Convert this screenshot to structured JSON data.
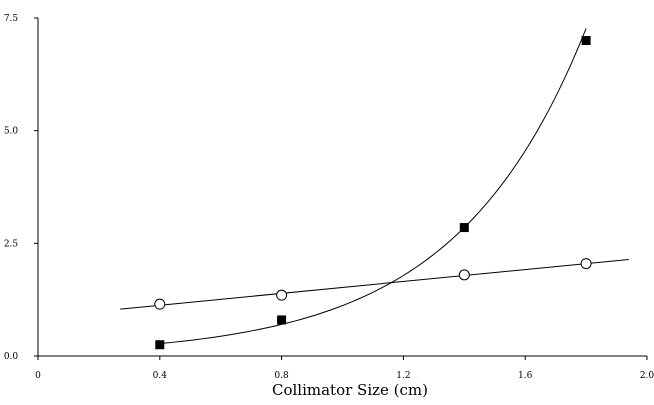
{
  "chart_data": {
    "type": "scatter",
    "xlabel": "Collimator Size (cm)",
    "ylabel": "",
    "title": "",
    "xlim": [
      0,
      2.0
    ],
    "ylim": [
      0,
      7.5
    ],
    "x_ticks": [
      0,
      0.4,
      0.8,
      1.2,
      1.6,
      2.0
    ],
    "x_tick_labels": [
      "0",
      "0.4",
      "0.8",
      "1.2",
      "1.6",
      "2.0"
    ],
    "y_ticks": [
      0,
      2.5,
      5.0,
      7.5
    ],
    "y_tick_labels": [
      "0.0",
      "2.5",
      "5.0",
      "7.5"
    ],
    "grid": false,
    "legend": "none",
    "series": [
      {
        "marker": "filled-square",
        "color": "#000000",
        "x": [
          0.4,
          0.8,
          1.4,
          1.8
        ],
        "y": [
          0.25,
          0.8,
          2.85,
          7.0
        ],
        "fit": "exponential",
        "fit_x_range": [
          0.4,
          1.8
        ]
      },
      {
        "marker": "open-circle",
        "color": "#000000",
        "x": [
          0.4,
          0.8,
          1.4,
          1.8
        ],
        "y": [
          1.15,
          1.35,
          1.8,
          2.05
        ],
        "fit": "linear",
        "fit_x_range": [
          0.27,
          1.94
        ]
      }
    ]
  }
}
